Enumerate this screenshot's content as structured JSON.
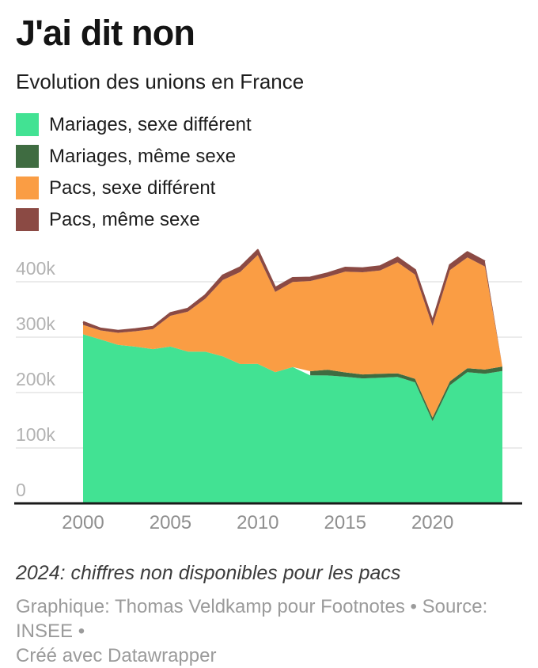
{
  "header": {
    "title": "J'ai dit non",
    "subtitle": "Evolution des unions en France"
  },
  "footer": {
    "note": "2024: chiffres non disponibles pour les pacs",
    "byline_line1": "Graphique: Thomas Veldkamp pour Footnotes • Source: INSEE •",
    "byline_line2": "Créé avec Datawrapper"
  },
  "colors": {
    "background": "#ffffff",
    "grid": "#ebebeb",
    "axis_baseline": "#1a1a1a",
    "y_tick_label": "#b2b2b2",
    "x_tick_label": "#8f8f8f"
  },
  "chart_data": {
    "type": "area",
    "stacked": true,
    "grid": "horizontal",
    "legend_position": "top-left",
    "unit": "unions per year, values in thousands",
    "ylim": [
      0,
      480
    ],
    "x": [
      2000,
      2001,
      2002,
      2003,
      2004,
      2005,
      2006,
      2007,
      2008,
      2009,
      2010,
      2011,
      2012,
      2013,
      2014,
      2015,
      2016,
      2017,
      2018,
      2019,
      2020,
      2021,
      2022,
      2023,
      2024
    ],
    "series": [
      {
        "name": "Mariages, sexe différent",
        "color": "#42e293",
        "values": [
          305.2,
          295.9,
          286.2,
          282.8,
          278.4,
          283.0,
          273.9,
          273.7,
          265.4,
          251.5,
          251.7,
          236.8,
          246.0,
          231.2,
          230.8,
          228.6,
          225.6,
          226.7,
          228.3,
          218.5,
          148.2,
          213.2,
          236.8,
          234.0,
          239.0
        ]
      },
      {
        "name": "Mariages, même sexe",
        "color": "#3f6c41",
        "values": [
          0,
          0,
          0,
          0,
          0,
          0,
          0,
          0,
          0,
          0,
          0,
          0,
          0,
          7.4,
          10.5,
          7.8,
          7.1,
          7.2,
          6.4,
          6.3,
          6.4,
          7.1,
          7.2,
          7.6,
          8.0
        ]
      },
      {
        "name": "Pacs, sexe différent",
        "color": "#fa9d44",
        "values": [
          16.9,
          16.3,
          21.7,
          27.9,
          36.1,
          55.6,
          72.3,
          95.8,
          137.8,
          166.2,
          196.4,
          144.8,
          153.7,
          162.7,
          167.5,
          181.9,
          184.4,
          186.6,
          200.3,
          188.0,
          165.6,
          200.9,
          200.0,
          186.0,
          0
        ]
      },
      {
        "name": "Pacs, même sexe",
        "color": "#8b4a44",
        "values": [
          5.4,
          3.3,
          3.6,
          3.7,
          4.0,
          4.9,
          5.1,
          6.2,
          8.2,
          8.3,
          9.1,
          7.4,
          7.0,
          6.1,
          6.3,
          7.0,
          7.1,
          7.3,
          8.6,
          8.4,
          8.3,
          8.9,
          9.4,
          9.0,
          0
        ]
      }
    ],
    "y_ticks": [
      {
        "value": 400,
        "label": "400k"
      },
      {
        "value": 300,
        "label": "300k"
      },
      {
        "value": 200,
        "label": "200k"
      },
      {
        "value": 100,
        "label": "100k"
      },
      {
        "value": 0,
        "label": "0"
      }
    ],
    "x_ticks": [
      {
        "value": 2000,
        "label": "2000"
      },
      {
        "value": 2005,
        "label": "2005"
      },
      {
        "value": 2010,
        "label": "2010"
      },
      {
        "value": 2015,
        "label": "2015"
      },
      {
        "value": 2020,
        "label": "2020"
      }
    ]
  }
}
